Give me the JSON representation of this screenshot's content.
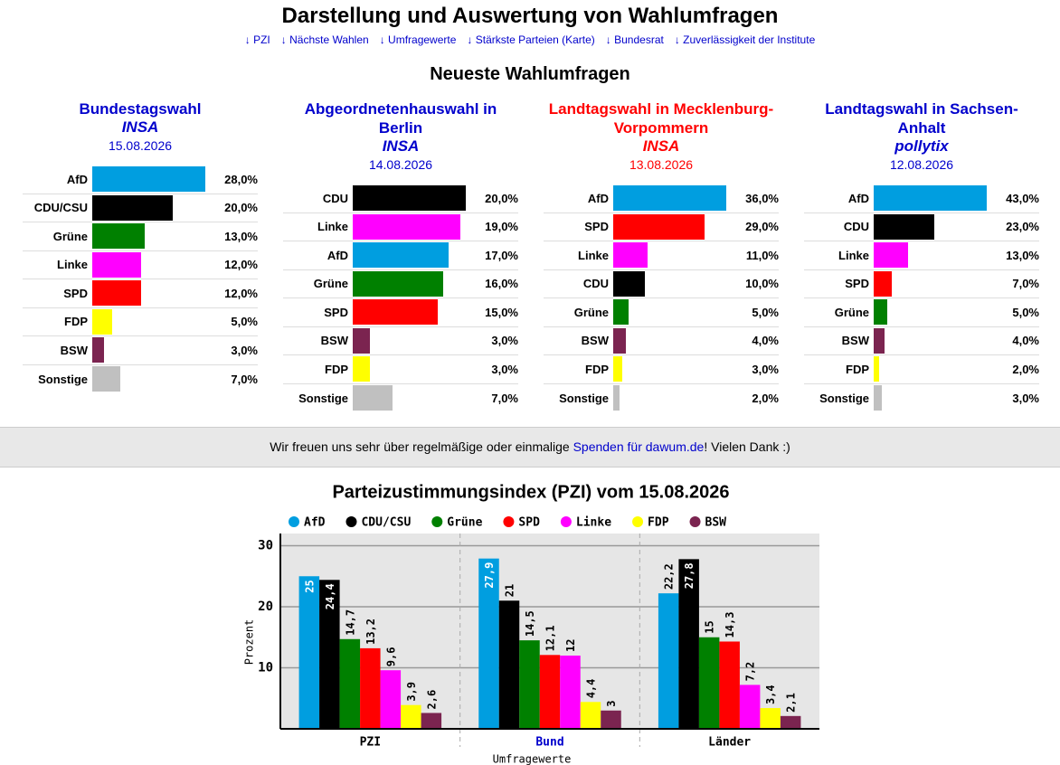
{
  "header": {
    "title": "Darstellung und Auswertung von Wahlumfragen",
    "nav": [
      "↓ PZI",
      "↓ Nächste Wahlen",
      "↓ Umfragewerte",
      "↓ Stärkste Parteien (Karte)",
      "↓ Bundesrat",
      "↓ Zuverlässigkeit der Institute"
    ]
  },
  "polls_title": "Neueste Wahlumfragen",
  "polls": [
    {
      "title": "Bundestagswahl",
      "institute": "INSA",
      "date": "15.08.2026",
      "color": "#0000cc",
      "rows": [
        {
          "party": "AfD",
          "value": 28,
          "label": "28,0%",
          "color": "#009ee0"
        },
        {
          "party": "CDU/CSU",
          "value": 20,
          "label": "20,0%",
          "color": "#000000"
        },
        {
          "party": "Grüne",
          "value": 13,
          "label": "13,0%",
          "color": "#008000"
        },
        {
          "party": "Linke",
          "value": 12,
          "label": "12,0%",
          "color": "#ff00ff"
        },
        {
          "party": "SPD",
          "value": 12,
          "label": "12,0%",
          "color": "#ff0000"
        },
        {
          "party": "FDP",
          "value": 5,
          "label": "5,0%",
          "color": "#ffff00"
        },
        {
          "party": "BSW",
          "value": 3,
          "label": "3,0%",
          "color": "#7b2450"
        },
        {
          "party": "Sonstige",
          "value": 7,
          "label": "7,0%",
          "color": "#c0c0c0"
        }
      ]
    },
    {
      "title": "Abgeordnetenhauswahl in Berlin",
      "institute": "INSA",
      "date": "14.08.2026",
      "color": "#0000cc",
      "rows": [
        {
          "party": "CDU",
          "value": 20,
          "label": "20,0%",
          "color": "#000000"
        },
        {
          "party": "Linke",
          "value": 19,
          "label": "19,0%",
          "color": "#ff00ff"
        },
        {
          "party": "AfD",
          "value": 17,
          "label": "17,0%",
          "color": "#009ee0"
        },
        {
          "party": "Grüne",
          "value": 16,
          "label": "16,0%",
          "color": "#008000"
        },
        {
          "party": "SPD",
          "value": 15,
          "label": "15,0%",
          "color": "#ff0000"
        },
        {
          "party": "BSW",
          "value": 3,
          "label": "3,0%",
          "color": "#7b2450"
        },
        {
          "party": "FDP",
          "value": 3,
          "label": "3,0%",
          "color": "#ffff00"
        },
        {
          "party": "Sonstige",
          "value": 7,
          "label": "7,0%",
          "color": "#c0c0c0"
        }
      ]
    },
    {
      "title": "Landtagswahl in Mecklenburg-Vorpommern",
      "institute": "INSA",
      "date": "13.08.2026",
      "color": "#ff0000",
      "rows": [
        {
          "party": "AfD",
          "value": 36,
          "label": "36,0%",
          "color": "#009ee0"
        },
        {
          "party": "SPD",
          "value": 29,
          "label": "29,0%",
          "color": "#ff0000"
        },
        {
          "party": "Linke",
          "value": 11,
          "label": "11,0%",
          "color": "#ff00ff"
        },
        {
          "party": "CDU",
          "value": 10,
          "label": "10,0%",
          "color": "#000000"
        },
        {
          "party": "Grüne",
          "value": 5,
          "label": "5,0%",
          "color": "#008000"
        },
        {
          "party": "BSW",
          "value": 4,
          "label": "4,0%",
          "color": "#7b2450"
        },
        {
          "party": "FDP",
          "value": 3,
          "label": "3,0%",
          "color": "#ffff00"
        },
        {
          "party": "Sonstige",
          "value": 2,
          "label": "2,0%",
          "color": "#c0c0c0"
        }
      ]
    },
    {
      "title": "Landtagswahl in Sachsen-Anhalt",
      "institute": "pollytix",
      "date": "12.08.2026",
      "color": "#0000cc",
      "rows": [
        {
          "party": "AfD",
          "value": 43,
          "label": "43,0%",
          "color": "#009ee0"
        },
        {
          "party": "CDU",
          "value": 23,
          "label": "23,0%",
          "color": "#000000"
        },
        {
          "party": "Linke",
          "value": 13,
          "label": "13,0%",
          "color": "#ff00ff"
        },
        {
          "party": "SPD",
          "value": 7,
          "label": "7,0%",
          "color": "#ff0000"
        },
        {
          "party": "Grüne",
          "value": 5,
          "label": "5,0%",
          "color": "#008000"
        },
        {
          "party": "BSW",
          "value": 4,
          "label": "4,0%",
          "color": "#7b2450"
        },
        {
          "party": "FDP",
          "value": 2,
          "label": "2,0%",
          "color": "#ffff00"
        },
        {
          "party": "Sonstige",
          "value": 3,
          "label": "3,0%",
          "color": "#c0c0c0"
        }
      ]
    }
  ],
  "banner": {
    "before": "Wir freuen uns sehr über regelmäßige oder einmalige ",
    "link": "Spenden für dawum.de",
    "after": "! Vielen Dank :)"
  },
  "chart_data": {
    "type": "bar",
    "title": "Parteizustimmungsindex (PZI) vom 15.08.2026",
    "categories": [
      "PZI",
      "Bund",
      "Länder"
    ],
    "category_colors": [
      "#000000",
      "#0000cc",
      "#000000"
    ],
    "x_label": "Umfragewerte",
    "y_label": "Prozent",
    "ylim": [
      0,
      32
    ],
    "yticks": [
      10,
      20,
      30
    ],
    "grid": true,
    "series": [
      {
        "name": "AfD",
        "color": "#009ee0",
        "values": [
          25,
          27.9,
          22.2
        ],
        "value_labels": [
          "25",
          "27,9",
          "22,2"
        ]
      },
      {
        "name": "CDU/CSU",
        "color": "#000000",
        "values": [
          24.4,
          21,
          27.8
        ],
        "value_labels": [
          "24,4",
          "21",
          "27,8"
        ]
      },
      {
        "name": "Grüne",
        "color": "#008000",
        "values": [
          14.7,
          14.5,
          15
        ],
        "value_labels": [
          "14,7",
          "14,5",
          "15"
        ]
      },
      {
        "name": "SPD",
        "color": "#ff0000",
        "values": [
          13.2,
          12.1,
          14.3
        ],
        "value_labels": [
          "13,2",
          "12,1",
          "14,3"
        ]
      },
      {
        "name": "Linke",
        "color": "#ff00ff",
        "values": [
          9.6,
          12,
          7.2
        ],
        "value_labels": [
          "9,6",
          "12",
          "7,2"
        ]
      },
      {
        "name": "FDP",
        "color": "#ffff00",
        "values": [
          3.9,
          4.4,
          3.4
        ],
        "value_labels": [
          "3,9",
          "4,4",
          "3,4"
        ]
      },
      {
        "name": "BSW",
        "color": "#7b2450",
        "values": [
          2.6,
          3,
          2.1
        ],
        "value_labels": [
          "2,6",
          "3",
          "2,1"
        ]
      }
    ]
  }
}
